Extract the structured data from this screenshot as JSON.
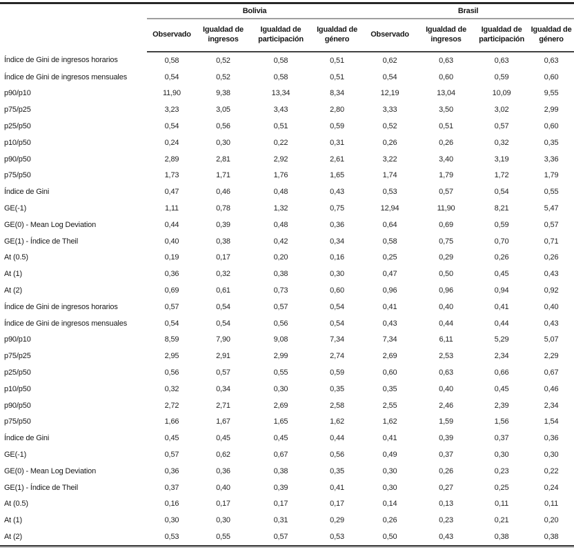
{
  "colors": {
    "text": "#1c1c1c",
    "rule_top": "#262626",
    "rule_group": "#9e9e9e",
    "rule_header": "#404040",
    "rule_bottom_dark": "#3a3a3a",
    "rule_bottom_light": "#c2c2c2",
    "background": "#ffffff"
  },
  "chart_data": {
    "type": "table",
    "col_groups": [
      {
        "label": "Bolivia",
        "span": 4
      },
      {
        "label": "Brasil",
        "span": 4
      }
    ],
    "sub_headers": [
      "Observado",
      "Igualdad de ingresos",
      "Igualdad de participación",
      "Igualdad de género"
    ],
    "rows": [
      {
        "label": "Índice de Gini de ingresos horarios",
        "values": [
          "0,58",
          "0,52",
          "0,58",
          "0,51",
          "0,62",
          "0,63",
          "0,63",
          "0,63"
        ]
      },
      {
        "label": "Índice de Gini de ingresos mensuales",
        "values": [
          "0,54",
          "0,52",
          "0,58",
          "0,51",
          "0,54",
          "0,60",
          "0,59",
          "0,60"
        ]
      },
      {
        "label": "p90/p10",
        "values": [
          "11,90",
          "9,38",
          "13,34",
          "8,34",
          "12,19",
          "13,04",
          "10,09",
          "9,55"
        ]
      },
      {
        "label": "p75/p25",
        "values": [
          "3,23",
          "3,05",
          "3,43",
          "2,80",
          "3,33",
          "3,50",
          "3,02",
          "2,99"
        ]
      },
      {
        "label": "p25/p50",
        "values": [
          "0,54",
          "0,56",
          "0,51",
          "0,59",
          "0,52",
          "0,51",
          "0,57",
          "0,60"
        ]
      },
      {
        "label": "p10/p50",
        "values": [
          "0,24",
          "0,30",
          "0,22",
          "0,31",
          "0,26",
          "0,26",
          "0,32",
          "0,35"
        ]
      },
      {
        "label": "p90/p50",
        "values": [
          "2,89",
          "2,81",
          "2,92",
          "2,61",
          "3,22",
          "3,40",
          "3,19",
          "3,36"
        ]
      },
      {
        "label": "p75/p50",
        "values": [
          "1,73",
          "1,71",
          "1,76",
          "1,65",
          "1,74",
          "1,79",
          "1,72",
          "1,79"
        ]
      },
      {
        "label": "Índice de Gini",
        "values": [
          "0,47",
          "0,46",
          "0,48",
          "0,43",
          "0,53",
          "0,57",
          "0,54",
          "0,55"
        ]
      },
      {
        "label": "GE(-1)",
        "values": [
          "1,11",
          "0,78",
          "1,32",
          "0,75",
          "12,94",
          "11,90",
          "8,21",
          "5,47"
        ]
      },
      {
        "label": "GE(0) - Mean Log Deviation",
        "values": [
          "0,44",
          "0,39",
          "0,48",
          "0,36",
          "0,64",
          "0,69",
          "0,59",
          "0,57"
        ]
      },
      {
        "label": "GE(1) - Índice de Theil",
        "values": [
          "0,40",
          "0,38",
          "0,42",
          "0,34",
          "0,58",
          "0,75",
          "0,70",
          "0,71"
        ]
      },
      {
        "label": "At (0.5)",
        "values": [
          "0,19",
          "0,17",
          "0,20",
          "0,16",
          "0,25",
          "0,29",
          "0,26",
          "0,26"
        ]
      },
      {
        "label": "At (1)",
        "values": [
          "0,36",
          "0,32",
          "0,38",
          "0,30",
          "0,47",
          "0,50",
          "0,45",
          "0,43"
        ]
      },
      {
        "label": "At (2)",
        "values": [
          "0,69",
          "0,61",
          "0,73",
          "0,60",
          "0,96",
          "0,96",
          "0,94",
          "0,92"
        ]
      },
      {
        "label": "Índice de Gini de ingresos horarios",
        "values": [
          "0,57",
          "0,54",
          "0,57",
          "0,54",
          "0,41",
          "0,40",
          "0,41",
          "0,40"
        ]
      },
      {
        "label": "Índice de Gini de ingresos mensuales",
        "values": [
          "0,54",
          "0,54",
          "0,56",
          "0,54",
          "0,43",
          "0,44",
          "0,44",
          "0,43"
        ]
      },
      {
        "label": "p90/p10",
        "values": [
          "8,59",
          "7,90",
          "9,08",
          "7,34",
          "7,34",
          "6,11",
          "5,29",
          "5,07"
        ]
      },
      {
        "label": "p75/p25",
        "values": [
          "2,95",
          "2,91",
          "2,99",
          "2,74",
          "2,69",
          "2,53",
          "2,34",
          "2,29"
        ]
      },
      {
        "label": "p25/p50",
        "values": [
          "0,56",
          "0,57",
          "0,55",
          "0,59",
          "0,60",
          "0,63",
          "0,66",
          "0,67"
        ]
      },
      {
        "label": "p10/p50",
        "values": [
          "0,32",
          "0,34",
          "0,30",
          "0,35",
          "0,35",
          "0,40",
          "0,45",
          "0,46"
        ]
      },
      {
        "label": "p90/p50",
        "values": [
          "2,72",
          "2,71",
          "2,69",
          "2,58",
          "2,55",
          "2,46",
          "2,39",
          "2,34"
        ]
      },
      {
        "label": "p75/p50",
        "values": [
          "1,66",
          "1,67",
          "1,65",
          "1,62",
          "1,62",
          "1,59",
          "1,56",
          "1,54"
        ]
      },
      {
        "label": "Índice de Gini",
        "values": [
          "0,45",
          "0,45",
          "0,45",
          "0,44",
          "0,41",
          "0,39",
          "0,37",
          "0,36"
        ]
      },
      {
        "label": "GE(-1)",
        "values": [
          "0,57",
          "0,62",
          "0,67",
          "0,56",
          "0,49",
          "0,37",
          "0,30",
          "0,30"
        ]
      },
      {
        "label": "GE(0) - Mean Log Deviation",
        "values": [
          "0,36",
          "0,36",
          "0,38",
          "0,35",
          "0,30",
          "0,26",
          "0,23",
          "0,22"
        ]
      },
      {
        "label": "GE(1) - Índice de Theil",
        "values": [
          "0,37",
          "0,40",
          "0,39",
          "0,41",
          "0,30",
          "0,27",
          "0,25",
          "0,24"
        ]
      },
      {
        "label": "At (0.5)",
        "values": [
          "0,16",
          "0,17",
          "0,17",
          "0,17",
          "0,14",
          "0,13",
          "0,11",
          "0,11"
        ]
      },
      {
        "label": "At (1)",
        "values": [
          "0,30",
          "0,30",
          "0,31",
          "0,29",
          "0,26",
          "0,23",
          "0,21",
          "0,20"
        ]
      },
      {
        "label": "At (2)",
        "values": [
          "0,53",
          "0,55",
          "0,57",
          "0,53",
          "0,50",
          "0,43",
          "0,38",
          "0,38"
        ]
      }
    ]
  }
}
